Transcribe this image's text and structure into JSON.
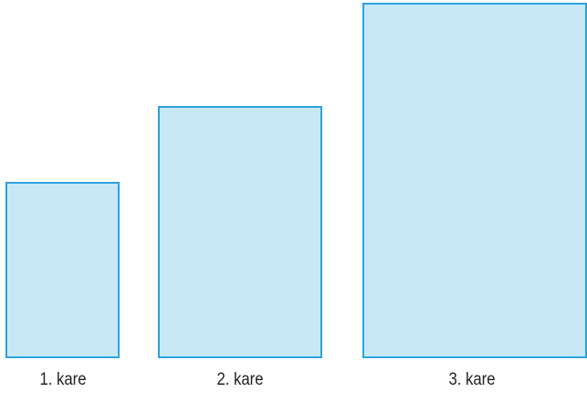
{
  "squares": [
    {
      "label": "1. kare"
    },
    {
      "label": "2. kare"
    },
    {
      "label": "3. kare"
    }
  ],
  "colors": {
    "fill": "#c8e8f8",
    "stroke": "#2ea2de",
    "label_text": "#222222"
  }
}
